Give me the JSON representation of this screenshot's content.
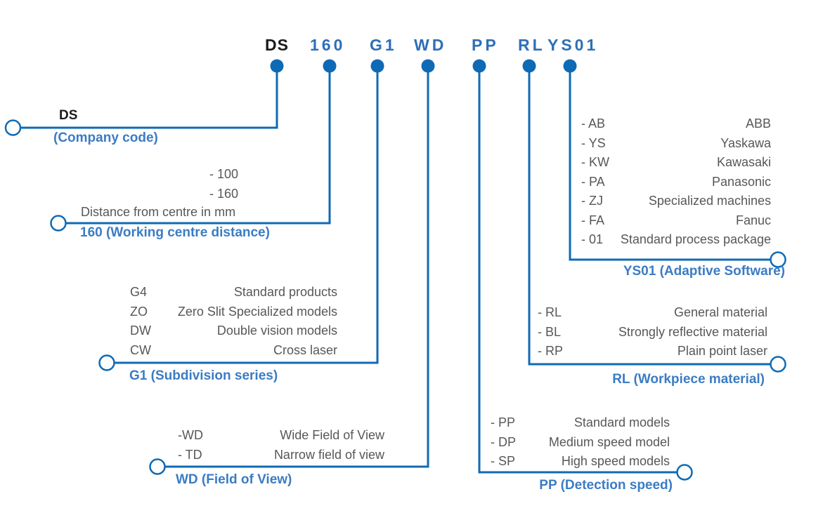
{
  "colors": {
    "line_blue": "#0f6ab5",
    "header_blue": "#2e6fb7",
    "label_blue": "#3b7cc4",
    "text_gray": "#56575a",
    "code_black": "#1b1b1b"
  },
  "model_code": {
    "segments": [
      "DS",
      "160",
      "G1",
      "WD",
      "PP",
      "RL",
      "YS01"
    ]
  },
  "sections": {
    "company_code": {
      "code": "DS",
      "title": "(Company code)"
    },
    "working_centre_distance": {
      "title": "160 (Working centre distance)",
      "note": "Distance from centre in mm",
      "options": [
        {
          "code": "- 100",
          "desc": ""
        },
        {
          "code": "- 160",
          "desc": ""
        }
      ]
    },
    "subdivision_series": {
      "title": "G1 (Subdivision series)",
      "options": [
        {
          "code": "G4",
          "desc": "Standard products"
        },
        {
          "code": "ZO",
          "desc": "Zero Slit Specialized models"
        },
        {
          "code": "DW",
          "desc": "Double vision models"
        },
        {
          "code": "CW",
          "desc": "Cross laser"
        }
      ]
    },
    "field_of_view": {
      "title": "WD (Field of View)",
      "options": [
        {
          "code": "-WD",
          "desc": "Wide Field of View"
        },
        {
          "code": "- TD",
          "desc": "Narrow field of view"
        }
      ]
    },
    "detection_speed": {
      "title": "PP (Detection speed)",
      "options": [
        {
          "code": "- PP",
          "desc": "Standard models"
        },
        {
          "code": "- DP",
          "desc": "Medium speed model"
        },
        {
          "code": "- SP",
          "desc": "High speed models"
        }
      ]
    },
    "workpiece_material": {
      "title": "RL (Workpiece material)",
      "options": [
        {
          "code": "- RL",
          "desc": "General material"
        },
        {
          "code": "- BL",
          "desc": "Strongly reflective material"
        },
        {
          "code": "- RP",
          "desc": "Plain point laser"
        }
      ]
    },
    "adaptive_software": {
      "title": "YS01 (Adaptive Software)",
      "options": [
        {
          "code": "- AB",
          "desc": "ABB"
        },
        {
          "code": "- YS",
          "desc": "Yaskawa"
        },
        {
          "code": "- KW",
          "desc": "Kawasaki"
        },
        {
          "code": "- PA",
          "desc": "Panasonic"
        },
        {
          "code": "- ZJ",
          "desc": "Specialized machines"
        },
        {
          "code": "- FA",
          "desc": "Fanuc"
        },
        {
          "code": "- 01",
          "desc": "Standard process package"
        }
      ]
    }
  }
}
